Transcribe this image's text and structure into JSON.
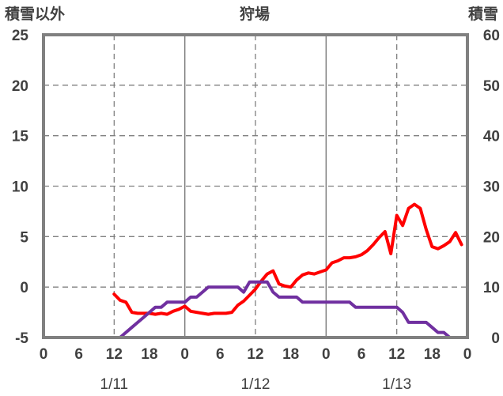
{
  "chart_data": {
    "type": "line",
    "title": "狩場",
    "left_axis_label": "積雪以外",
    "right_axis_label": "積雪",
    "left_ylim": [
      -5,
      25
    ],
    "left_ticks": [
      "25",
      "20",
      "15",
      "10",
      "5",
      "0",
      "-5"
    ],
    "right_ylim": [
      0,
      60
    ],
    "right_ticks": [
      "60",
      "50",
      "40",
      "30",
      "20",
      "10",
      "0"
    ],
    "x_range_hours": [
      0,
      72
    ],
    "x_tick_labels": [
      "0",
      "6",
      "12",
      "18",
      "0",
      "6",
      "12",
      "18",
      "0",
      "6",
      "12",
      "18",
      "0"
    ],
    "date_labels": [
      {
        "label": "1/11",
        "hour": 12
      },
      {
        "label": "1/12",
        "hour": 36
      },
      {
        "label": "1/13",
        "hour": 60
      }
    ],
    "day_boundaries_hours": [
      24,
      48
    ],
    "noon_lines_hours": [
      12,
      36,
      60
    ],
    "grid": true,
    "series": [
      {
        "axis": "left",
        "color": "#ff0000",
        "x": [
          12,
          13,
          14,
          15,
          16,
          17,
          18,
          19,
          20,
          21,
          22,
          23,
          24,
          25,
          26,
          27,
          28,
          29,
          30,
          31,
          32,
          33,
          34,
          35,
          36,
          37,
          38,
          39,
          40,
          41,
          42,
          43,
          44,
          45,
          46,
          47,
          48,
          49,
          50,
          51,
          52,
          53,
          54,
          55,
          56,
          57,
          58,
          59,
          60,
          61,
          62,
          63,
          64,
          65,
          66,
          67,
          68,
          69,
          70,
          71
        ],
        "values": [
          -0.7,
          -1.3,
          -1.5,
          -2.5,
          -2.6,
          -2.6,
          -2.6,
          -2.7,
          -2.6,
          -2.7,
          -2.4,
          -2.2,
          -1.9,
          -2.4,
          -2.5,
          -2.6,
          -2.7,
          -2.6,
          -2.6,
          -2.6,
          -2.5,
          -1.8,
          -1.4,
          -0.8,
          -0.2,
          0.6,
          1.3,
          1.6,
          0.3,
          0.1,
          0.0,
          0.7,
          1.2,
          1.4,
          1.3,
          1.5,
          1.7,
          2.4,
          2.6,
          2.9,
          2.9,
          3.0,
          3.2,
          3.6,
          4.2,
          4.9,
          5.5,
          3.3,
          7.1,
          6.1,
          7.8,
          8.2,
          7.8,
          5.7,
          4.0,
          3.8,
          4.1,
          4.5,
          5.4,
          4.2
        ]
      },
      {
        "axis": "right",
        "color": "#7030a0",
        "x": [
          12,
          13,
          14,
          15,
          16,
          17,
          18,
          19,
          20,
          21,
          22,
          23,
          24,
          25,
          26,
          27,
          28,
          29,
          30,
          31,
          32,
          33,
          34,
          35,
          36,
          37,
          38,
          39,
          40,
          41,
          42,
          43,
          44,
          45,
          46,
          47,
          48,
          49,
          50,
          51,
          52,
          53,
          54,
          55,
          56,
          57,
          58,
          59,
          60,
          61,
          62,
          63,
          64,
          65,
          66,
          67,
          68,
          69,
          70,
          71,
          72
        ],
        "values": [
          0,
          0,
          1,
          2,
          3,
          4,
          5,
          6,
          6,
          7,
          7,
          7,
          7,
          8,
          8,
          9,
          10,
          10,
          10,
          10,
          10,
          10,
          9,
          11,
          11,
          11,
          11,
          9,
          8,
          8,
          8,
          8,
          7,
          7,
          7,
          7,
          7,
          7,
          7,
          7,
          7,
          6,
          6,
          6,
          6,
          6,
          6,
          6,
          6,
          5,
          3,
          3,
          3,
          3,
          2,
          1,
          1,
          0,
          0,
          0,
          0
        ]
      }
    ]
  }
}
